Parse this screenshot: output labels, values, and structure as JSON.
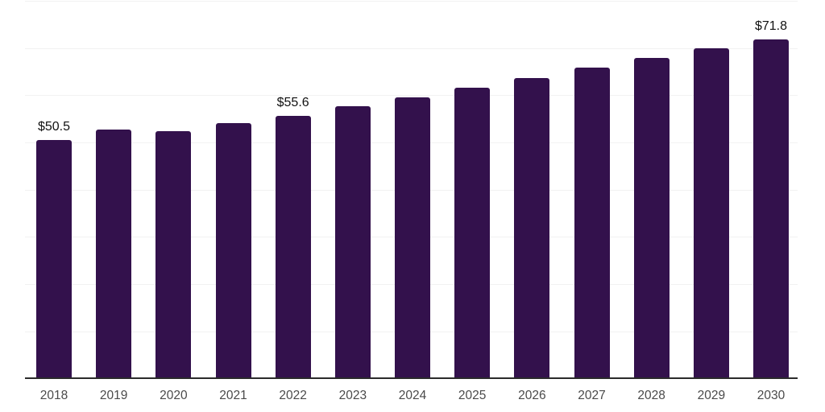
{
  "chart_data": {
    "type": "bar",
    "title": "",
    "xlabel": "",
    "ylabel": "",
    "categories": [
      "2018",
      "2019",
      "2020",
      "2021",
      "2022",
      "2023",
      "2024",
      "2025",
      "2026",
      "2027",
      "2028",
      "2029",
      "2030"
    ],
    "values": [
      50.5,
      52.7,
      52.3,
      54.1,
      55.6,
      57.6,
      59.4,
      61.6,
      63.6,
      65.7,
      67.9,
      69.8,
      71.8
    ],
    "value_prefix": "$",
    "shown_value_labels": [
      {
        "category": "2018",
        "text": "$50.5"
      },
      {
        "category": "2022",
        "text": "$55.6"
      },
      {
        "category": "2030",
        "text": "$71.8"
      }
    ],
    "ylim": [
      0,
      80
    ],
    "grid_step": 10,
    "grid": "horizontal",
    "legend_position": "none",
    "colors": {
      "bar": "#33114c",
      "gridline": "#f2f2f2",
      "x_axis_line": "#2b2b2b",
      "value_label_text": "#111111",
      "tick_label_text": "#4a4a4a",
      "background": "#ffffff"
    }
  }
}
